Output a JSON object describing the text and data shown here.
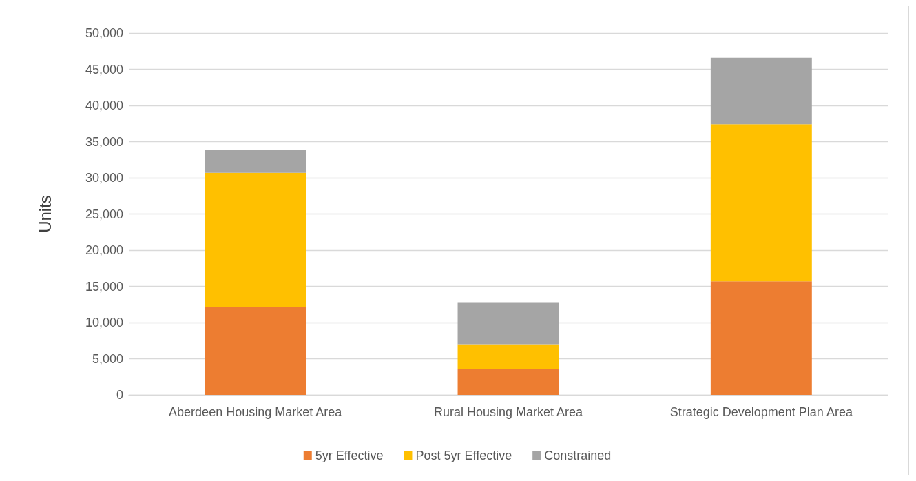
{
  "chart_data": {
    "type": "bar",
    "stacked": true,
    "ylabel": "Units",
    "categories": [
      "Aberdeen Housing Market Area",
      "Rural Housing Market Area",
      "Strategic Development Plan Area"
    ],
    "series": [
      {
        "name": "5yr Effective",
        "color": "#ed7d31",
        "values": [
          12100,
          3600,
          15700
        ]
      },
      {
        "name": "Post 5yr Effective",
        "color": "#ffc000",
        "values": [
          18600,
          3400,
          21700
        ]
      },
      {
        "name": "Constrained",
        "color": "#a5a5a5",
        "values": [
          3100,
          5800,
          9200
        ]
      }
    ],
    "ylim": [
      0,
      50000
    ],
    "yticks": [
      {
        "value": 0,
        "label": "0"
      },
      {
        "value": 5000,
        "label": "5,000"
      },
      {
        "value": 10000,
        "label": "10,000"
      },
      {
        "value": 15000,
        "label": "15,000"
      },
      {
        "value": 20000,
        "label": "20,000"
      },
      {
        "value": 25000,
        "label": "25,000"
      },
      {
        "value": 30000,
        "label": "30,000"
      },
      {
        "value": 35000,
        "label": "35,000"
      },
      {
        "value": 40000,
        "label": "40,000"
      },
      {
        "value": 45000,
        "label": "45,000"
      },
      {
        "value": 50000,
        "label": "50,000"
      }
    ],
    "grid": "y",
    "legend": "bottom"
  }
}
